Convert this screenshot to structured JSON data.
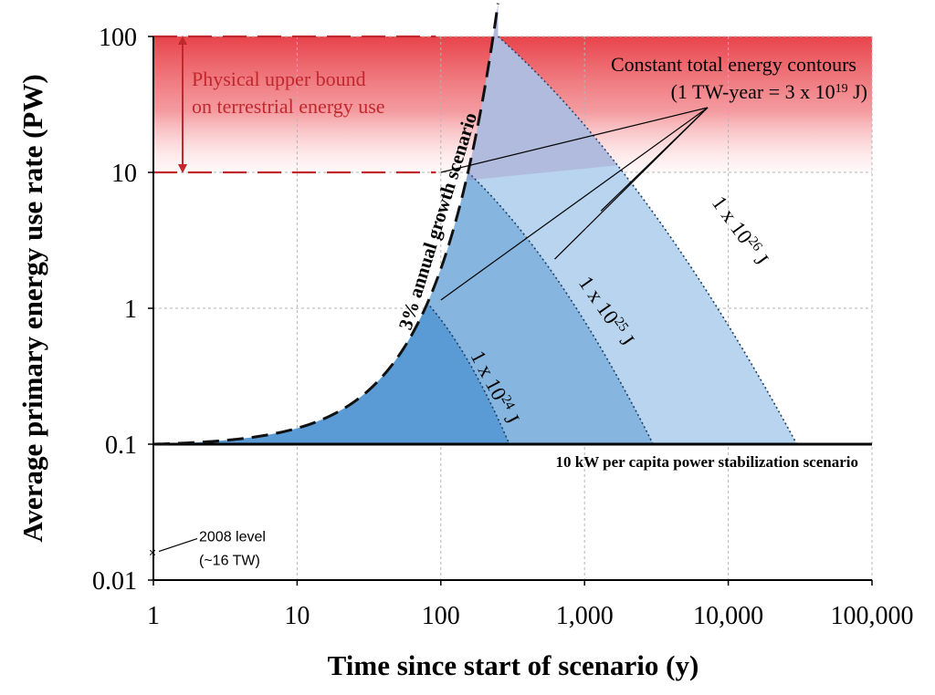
{
  "chart_data": {
    "type": "area",
    "xscale": "log",
    "yscale": "log",
    "xlim": [
      1,
      100000
    ],
    "ylim": [
      0.01,
      100
    ],
    "xlabel": "Time since start of scenario (y)",
    "ylabel": "Average primary energy use rate (PW)",
    "x_ticks": [
      1,
      10,
      100,
      1000,
      10000,
      100000
    ],
    "x_tick_labels": [
      "1",
      "10",
      "100",
      "1,000",
      "10,000",
      "100,000"
    ],
    "y_ticks": [
      0.01,
      0.1,
      1,
      10,
      100
    ],
    "y_tick_labels": [
      "0.01",
      "0.1",
      "1",
      "10",
      "100"
    ],
    "grid": true,
    "baseline": 0.1,
    "growth_rate": 0.03,
    "series": [
      {
        "name": "3% annual growth scenario",
        "style": "dashed",
        "x_start": 1,
        "x_end": 250
      },
      {
        "name": "10 kW per capita power stabilization scenario",
        "style": "solid",
        "value": 0.1
      }
    ],
    "contours": [
      {
        "label_pre": "1 x 10",
        "exp": "24",
        "label_post": " J",
        "peak_x": 80,
        "peak_y": 1.1,
        "end_x": 300,
        "color": "#5a9bd5"
      },
      {
        "label_pre": "1 x 10",
        "exp": "25",
        "label_post": " J",
        "peak_x": 155,
        "peak_y": 10,
        "end_x": 3000,
        "color": "#86b6e0"
      },
      {
        "label_pre": "1 x 10",
        "exp": "26",
        "label_post": " J",
        "peak_x": 250,
        "peak_y": 100,
        "end_x": 30000,
        "color": "#b8d4ee"
      }
    ],
    "physical_bound": {
      "lower": 10,
      "upper": 100,
      "label_lines": [
        "Physical upper bound",
        "on terrestrial energy use"
      ],
      "color": "#c0282d"
    },
    "contour_note": {
      "line1": "Constant total energy contours",
      "line2_pre": "(1 TW-year = 3 x 10",
      "line2_exp": "19",
      "line2_post": " J)"
    },
    "annotation_2008": {
      "x": 1,
      "y": 0.016,
      "label_lines": [
        "2008 level",
        "(~16 TW)"
      ]
    }
  }
}
